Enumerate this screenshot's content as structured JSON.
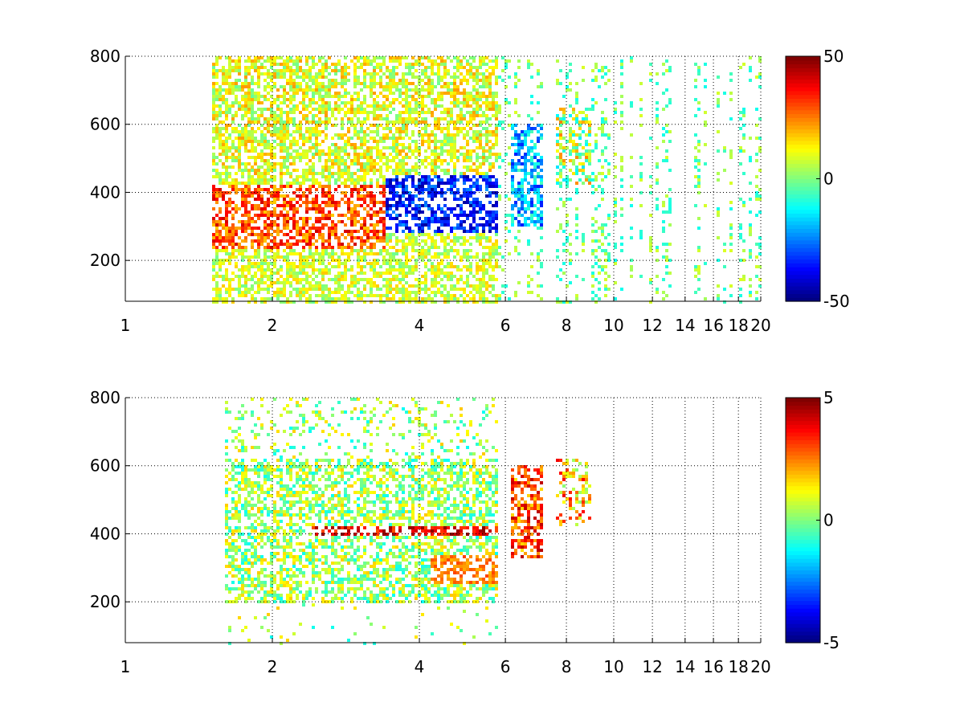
{
  "chart_data": [
    {
      "type": "heatmap",
      "title": "",
      "xlabel": "",
      "ylabel": "",
      "x_scale": "log",
      "xlim": [
        1,
        20
      ],
      "ylim": [
        80,
        800
      ],
      "x_ticks": [
        1,
        2,
        4,
        6,
        8,
        10,
        12,
        14,
        16,
        18,
        20
      ],
      "y_ticks": [
        200,
        400,
        600,
        800
      ],
      "grid": true,
      "colormap": "jet",
      "clim": [
        -50,
        50
      ],
      "colorbar_ticks": [
        -50,
        0,
        50
      ],
      "structure": {
        "dense_region_x": [
          1.5,
          5.8
        ],
        "sparse_region_x": [
          5.8,
          20
        ],
        "positive_band": {
          "x": [
            1.5,
            3.4
          ],
          "y": [
            230,
            420
          ],
          "value": 30
        },
        "negative_band": {
          "x": [
            3.4,
            5.8
          ],
          "y": [
            280,
            450
          ],
          "value": -35
        },
        "cluster_a": {
          "x": [
            6.2,
            7.2
          ],
          "y": [
            300,
            600
          ],
          "value": -20
        },
        "cluster_b": {
          "x": [
            7.6,
            9.0
          ],
          "y": [
            420,
            650
          ],
          "value": 5
        }
      }
    },
    {
      "type": "heatmap",
      "title": "",
      "xlabel": "",
      "ylabel": "",
      "x_scale": "log",
      "xlim": [
        1,
        20
      ],
      "ylim": [
        80,
        800
      ],
      "x_ticks": [
        1,
        2,
        4,
        6,
        8,
        10,
        12,
        14,
        16,
        18,
        20
      ],
      "y_ticks": [
        200,
        400,
        600,
        800
      ],
      "grid": true,
      "colormap": "jet",
      "clim": [
        -5,
        5
      ],
      "colorbar_ticks": [
        -5,
        0,
        5
      ],
      "structure": {
        "dense_region_x": [
          1.6,
          5.8
        ],
        "positive_band": {
          "x": [
            2.4,
            5.8
          ],
          "y": [
            390,
            420
          ],
          "value": 4
        },
        "lower_band": {
          "x": [
            4.2,
            5.8
          ],
          "y": [
            250,
            340
          ],
          "value": 2.5
        },
        "cluster_a": {
          "x": [
            6.2,
            7.2
          ],
          "y": [
            330,
            600
          ],
          "value": 3
        },
        "cluster_b": {
          "x": [
            7.6,
            9.0
          ],
          "y": [
            420,
            620
          ],
          "value": 2
        }
      }
    }
  ]
}
